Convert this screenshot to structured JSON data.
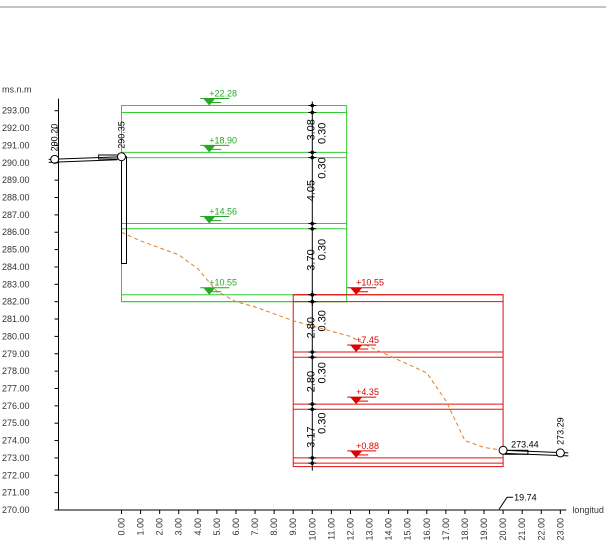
{
  "chart_data": {
    "type": "elevation-profile",
    "title": "",
    "xlabel": "longitud",
    "ylabel": "ms.n.m",
    "xlim": [
      -3.5,
      23.0
    ],
    "ylim": [
      270.0,
      293.7
    ],
    "x_ticks": [
      "0.00",
      "1.00",
      "2.00",
      "3.00",
      "4.00",
      "5.00",
      "6.00",
      "7.00",
      "8.00",
      "9.00",
      "10.00",
      "11.00",
      "12.00",
      "13.00",
      "14.00",
      "15.00",
      "16.00",
      "17.00",
      "18.00",
      "19.00",
      "20.00",
      "21.00",
      "22.00",
      "23.00"
    ],
    "y_ticks": [
      "270.00",
      "271.00",
      "272.00",
      "273.00",
      "274.00",
      "275.00",
      "276.00",
      "277.00",
      "278.00",
      "279.00",
      "280.00",
      "281.00",
      "282.00",
      "283.00",
      "284.00",
      "285.00",
      "286.00",
      "287.00",
      "288.00",
      "289.00",
      "290.00",
      "291.00",
      "292.00",
      "293.00"
    ],
    "terrain_profile": [
      {
        "x": 0.0,
        "y": 286.0
      },
      {
        "x": 1.0,
        "y": 285.5
      },
      {
        "x": 2.0,
        "y": 285.1
      },
      {
        "x": 3.0,
        "y": 284.7
      },
      {
        "x": 4.0,
        "y": 283.9
      },
      {
        "x": 5.0,
        "y": 282.6
      },
      {
        "x": 6.0,
        "y": 282.0
      },
      {
        "x": 7.0,
        "y": 281.7
      },
      {
        "x": 8.0,
        "y": 281.3
      },
      {
        "x": 9.0,
        "y": 280.9
      },
      {
        "x": 10.0,
        "y": 280.6
      },
      {
        "x": 11.0,
        "y": 280.3
      },
      {
        "x": 12.0,
        "y": 280.0
      },
      {
        "x": 13.0,
        "y": 279.4
      },
      {
        "x": 14.0,
        "y": 278.9
      },
      {
        "x": 15.0,
        "y": 278.4
      },
      {
        "x": 16.0,
        "y": 277.9
      },
      {
        "x": 17.0,
        "y": 276.3
      },
      {
        "x": 18.0,
        "y": 274.0
      },
      {
        "x": 19.0,
        "y": 273.6
      },
      {
        "x": 20.0,
        "y": 273.44
      }
    ],
    "upstream_pipe": {
      "x_start": -3.5,
      "x_end": 0.0,
      "y_start": 290.2,
      "y_end": 290.35
    },
    "downstream_pipe": {
      "x_start": 20.0,
      "x_end": 23.0,
      "y_start": 273.44,
      "y_end": 273.29
    },
    "inlet_drop": {
      "x": 0.0,
      "y_top": 290.35,
      "y_bottom": 284.2
    },
    "nodes": [
      {
        "x": -3.5,
        "y": 290.2,
        "label": "290.20"
      },
      {
        "x": 0.0,
        "y": 290.35,
        "label": "290.35"
      },
      {
        "x": 20.0,
        "y": 273.44,
        "label": "273.44"
      },
      {
        "x": 23.0,
        "y": 273.29,
        "label": "273.29"
      }
    ],
    "green_structure": {
      "x_left": 0.0,
      "x_right": 11.8,
      "axis_x": 10.0,
      "frame_top": 293.3,
      "frame_bottom": 282.0,
      "slabs": [
        {
          "top": 293.3,
          "bottom": 292.9
        },
        {
          "top": 290.6,
          "bottom": 290.3
        },
        {
          "top": 286.5,
          "bottom": 286.2
        },
        {
          "top": 282.4,
          "bottom": 282.0
        }
      ],
      "levels": [
        {
          "label": "+22.28",
          "x": 4.6,
          "y": 293.3
        },
        {
          "label": "+18.90",
          "x": 4.6,
          "y": 290.6
        },
        {
          "label": "+14.56",
          "x": 4.6,
          "y": 286.5
        },
        {
          "label": "+10.55",
          "x": 4.6,
          "y": 282.4
        }
      ],
      "dims": [
        {
          "label": "3.08",
          "y": 291.9
        },
        {
          "label": "0.30",
          "y": 291.7,
          "offset": 1
        },
        {
          "label": "0.30",
          "y": 289.7,
          "offset": 1
        },
        {
          "label": "4.05",
          "y": 288.4
        },
        {
          "label": "0.30",
          "y": 285.0,
          "offset": 1
        },
        {
          "label": "3.70",
          "y": 284.4
        }
      ]
    },
    "red_structure": {
      "x_left": 9.0,
      "x_right": 20.0,
      "axis_x": 10.0,
      "frame_top": 282.4,
      "frame_bottom": 272.5,
      "slabs": [
        {
          "top": 282.4,
          "bottom": 282.0
        },
        {
          "top": 279.1,
          "bottom": 278.8
        },
        {
          "top": 276.1,
          "bottom": 275.8
        },
        {
          "top": 273.0,
          "bottom": 272.7
        }
      ],
      "levels": [
        {
          "label": "+10.55",
          "x": 12.3,
          "y": 282.4
        },
        {
          "label": "+7.45",
          "x": 12.3,
          "y": 279.1
        },
        {
          "label": "+4.35",
          "x": 12.3,
          "y": 276.1
        },
        {
          "label": "+0.88",
          "x": 12.3,
          "y": 273.0
        }
      ],
      "dims": [
        {
          "label": "2.80",
          "y": 280.5
        },
        {
          "label": "0.30",
          "y": 280.9,
          "offset": 1
        },
        {
          "label": "0.30",
          "y": 277.9,
          "offset": 1
        },
        {
          "label": "2.80",
          "y": 277.4
        },
        {
          "label": "0.30",
          "y": 275.0,
          "offset": 1
        },
        {
          "label": "3.17",
          "y": 274.2
        }
      ]
    },
    "annotations": [
      {
        "label": "19.74",
        "x": 20.0,
        "y": 270.1
      }
    ],
    "colors": {
      "green": "#33cc33",
      "green_level": "#22aa22",
      "red": "#e01010",
      "red_level": "#dd0000",
      "terrain": "#e08020",
      "axis": "#000000",
      "text": "#333333"
    }
  }
}
